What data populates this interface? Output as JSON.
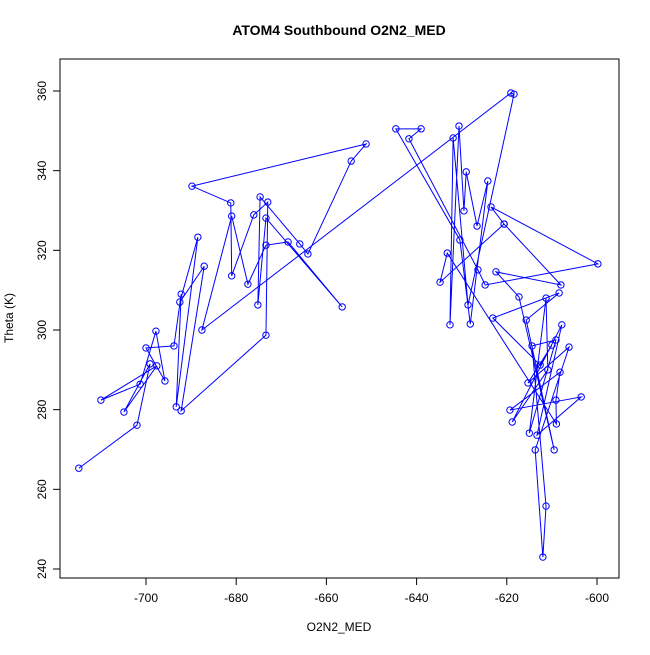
{
  "chart_data": {
    "type": "line",
    "title": "ATOM4 Southbound O2N2_MED",
    "x_label": "O2N2_MED",
    "y_label": "Theta (K)",
    "series": [
      {
        "color": "#0000ff",
        "x": [
          -714.9,
          -702,
          -699.1,
          -704.9,
          -697.6,
          -710,
          -701.3,
          -697.8,
          -695.8,
          -700,
          -693.8,
          -692.2,
          -693.3,
          -688.5,
          -692.5,
          -687.1,
          -692.2,
          -673.4,
          -673,
          -676.1,
          -681,
          -681.2,
          -689.8,
          -651.2,
          -654.5,
          -664.1,
          -665.9,
          -674.7,
          -675.2,
          -673.4,
          -656.5,
          -668.5,
          -673.4,
          -677.4,
          -681,
          -687.6,
          -619.1,
          -618.4,
          -628.6,
          -631.9,
          -632.6,
          -630.6,
          -629.5,
          -629,
          -626.6,
          -624.2,
          -628.1,
          -630.4,
          -644.6,
          -639,
          -641.7,
          -626.4,
          -624.8,
          -599.8,
          -623.5,
          -620.6,
          -608,
          -622.4,
          -617.3,
          -609.5,
          -615.7,
          -608.4,
          -623.1,
          -612.6,
          -610,
          -615.3,
          -606.2,
          -613.7,
          -612,
          -611.3,
          -614.4,
          -609.1,
          -615,
          -611.3,
          -610.9,
          -618.8,
          -607.8,
          -613.3,
          -603.5,
          -619.3,
          -608.2,
          -609.1,
          -609,
          -633.2,
          -634.8,
          -620.6
        ],
        "values": [
          265.3,
          276.1,
          291.5,
          279.4,
          291,
          282.4,
          286.4,
          299.7,
          287.2,
          295.5,
          296,
          309,
          280.7,
          323.3,
          307,
          316,
          279.7,
          298.7,
          332.1,
          328.9,
          313.6,
          331.9,
          336.1,
          346.7,
          342.4,
          319.1,
          321.6,
          333.4,
          306.3,
          328.1,
          305.8,
          322.1,
          321.3,
          311.5,
          328.6,
          300,
          359.5,
          359.2,
          306.3,
          348.2,
          301.3,
          351.2,
          329.9,
          339.7,
          326.1,
          337.4,
          301.5,
          322.6,
          350.5,
          350.5,
          348,
          315.1,
          311.3,
          316.6,
          330.9,
          326.6,
          311.3,
          314.6,
          308.3,
          269.9,
          302.5,
          309.3,
          303,
          291.2,
          296.2,
          286.7,
          295.7,
          269.9,
          243,
          255.8,
          296,
          297.5,
          274.1,
          308,
          290,
          276.9,
          301.3,
          273.6,
          283.2,
          279.9,
          289.4,
          282.4,
          276.4,
          319.3,
          312,
          326.6
        ]
      }
    ],
    "xlim": [
      -719.07,
      -595.12
    ],
    "ylim": [
      237.74,
      368.03
    ],
    "xticks": [
      -700,
      -680,
      -660,
      -640,
      -620,
      -600
    ],
    "yticks": [
      240,
      260,
      280,
      300,
      320,
      340,
      360
    ]
  }
}
